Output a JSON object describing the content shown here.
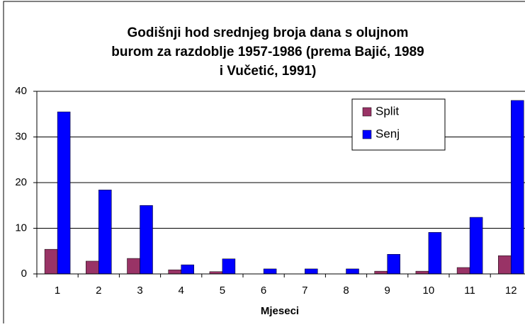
{
  "chart_data": {
    "type": "bar",
    "title": [
      "Godišnji hod srednjeg broja dana s olujnom",
      "burom za razdoblje 1957-1986 (prema Bajić, 1989",
      "i Vučetić, 1991)"
    ],
    "x_label": "Mjeseci",
    "categories": [
      "1",
      "2",
      "3",
      "4",
      "5",
      "6",
      "7",
      "8",
      "9",
      "10",
      "11",
      "12"
    ],
    "series": [
      {
        "name": "Split",
        "color": "#993366",
        "values": [
          5.4,
          2.8,
          3.4,
          0.9,
          0.5,
          0,
          0,
          0,
          0.6,
          0.6,
          1.4,
          4.0
        ]
      },
      {
        "name": "Senj",
        "color": "#0000ff",
        "values": [
          35.5,
          18.4,
          15.0,
          2.0,
          3.3,
          1.1,
          1.1,
          1.1,
          4.3,
          9.1,
          12.4,
          38.0
        ]
      }
    ],
    "ylim": [
      0,
      40
    ],
    "yticks": [
      0,
      10,
      20,
      30,
      40
    ],
    "grid": true,
    "legend": "top-right"
  }
}
